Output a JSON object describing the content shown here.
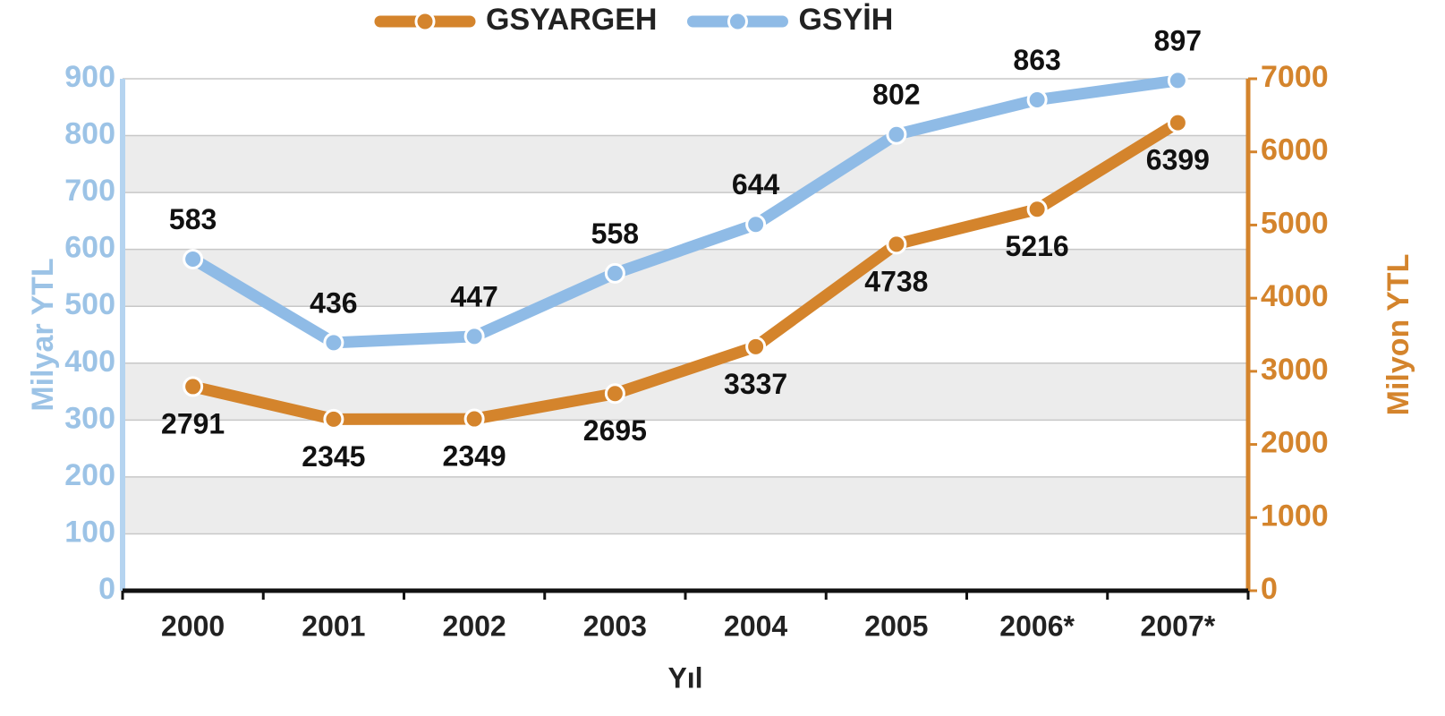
{
  "chart_data": {
    "type": "line",
    "categories": [
      "2000",
      "2001",
      "2002",
      "2003",
      "2004",
      "2005",
      "2006*",
      "2007*"
    ],
    "series": [
      {
        "name": "GSYARGEH",
        "color": "#d4842c",
        "axis": "y2",
        "values": [
          2791,
          2345,
          2349,
          2695,
          3337,
          4738,
          5216,
          6399
        ]
      },
      {
        "name": "GSYİH",
        "color": "#8fbbe6",
        "values": [
          583,
          436,
          447,
          558,
          644,
          802,
          863,
          897
        ]
      }
    ],
    "ylabel": "Milyar YTL",
    "y2label": "Milyon YTL",
    "xlabel": "Yıl",
    "ylim": [
      0,
      900
    ],
    "yticks": [
      0,
      100,
      200,
      300,
      400,
      500,
      600,
      700,
      800,
      900
    ],
    "y2lim": [
      0,
      7000
    ],
    "y2ticks": [
      0,
      1000,
      2000,
      3000,
      4000,
      5000,
      6000,
      7000
    ],
    "grid": true,
    "legend": "top"
  }
}
